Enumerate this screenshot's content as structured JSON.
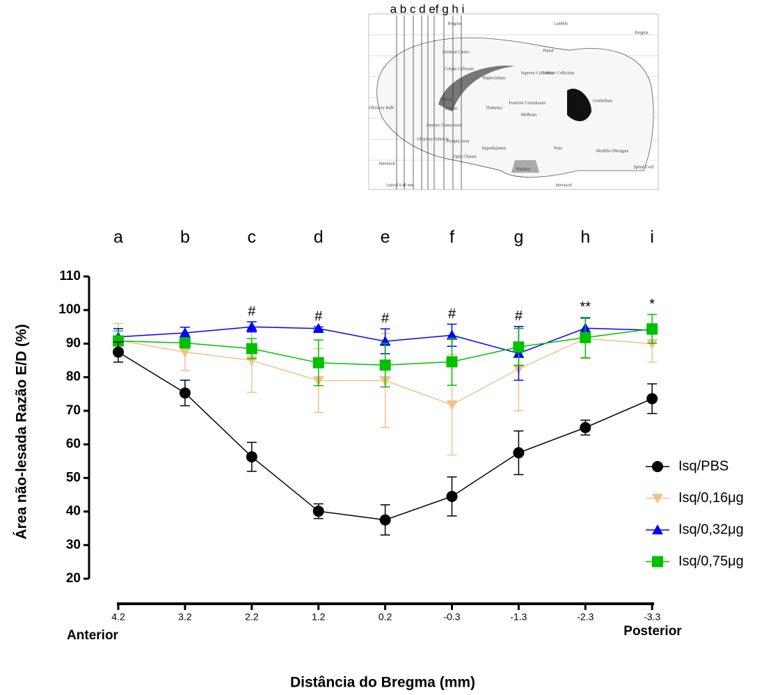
{
  "atlas": {
    "letters": "a b c d ef g h i",
    "labels": [
      "Bregma",
      "Lambda",
      "Bregma",
      "Cerebral Cortex",
      "Corpus Callosum",
      "Hippocampus",
      "Pineal",
      "Superior Colliculus",
      "Inferior Colliculus",
      "Cerebellum",
      "Olfactory Bulb",
      "Fornix",
      "Septum",
      "Thalamus",
      "Posterior Commissure",
      "Midbrain",
      "Anterior Commissure",
      "Olfactory Tubercle",
      "Preoptic Area",
      "Hypothalamus",
      "Optic Chiasm",
      "Pons",
      "Medulla Oblongata",
      "Spinal Cord",
      "Pituitary",
      "Interaural",
      "Interaural",
      "Lateral 0.40 mm"
    ]
  },
  "chart_data": {
    "type": "line",
    "top_labels": [
      "a",
      "b",
      "c",
      "d",
      "e",
      "f",
      "g",
      "h",
      "i"
    ],
    "categories": [
      "4.2",
      "3.2",
      "2.2",
      "1.2",
      "0.2",
      "-0.3",
      "-1.3",
      "-2.3",
      "-3.3"
    ],
    "annotations": [
      null,
      null,
      "#",
      "#",
      "#",
      "#",
      "#",
      "**",
      "*"
    ],
    "x_left_label": "Anterior",
    "x_right_label": "Posterior",
    "xlabel": "Distância do Bregma (mm)",
    "ylabel": "Área não-lesada Razão E/D (%)",
    "ylim": [
      20,
      110
    ],
    "yticks": [
      20,
      30,
      40,
      50,
      60,
      70,
      80,
      90,
      100,
      110
    ],
    "series": [
      {
        "name": "Isq/PBS",
        "color": "#000000",
        "marker": "circle",
        "values": [
          87.5,
          75.3,
          56.3,
          40.1,
          37.5,
          44.5,
          57.5,
          65,
          73.6
        ],
        "errors": [
          3,
          3.8,
          4.3,
          2.2,
          4.5,
          5.8,
          6.5,
          2.2,
          4.4
        ]
      },
      {
        "name": "Isq/0,16μg",
        "color": "#f5c08a",
        "marker": "triangle-down",
        "values": [
          91,
          87.5,
          85,
          79,
          79,
          71.8,
          82.5,
          91.5,
          90
        ],
        "errors": [
          5,
          5.5,
          9.5,
          9.5,
          14,
          15,
          12.5,
          6,
          5.5
        ]
      },
      {
        "name": "Isq/0,32μg",
        "color": "#0000ff",
        "marker": "triangle-up",
        "values": [
          92,
          93.2,
          95,
          94.5,
          90.7,
          92.5,
          87.1,
          94.6,
          94
        ],
        "errors": [
          2.5,
          1.7,
          1.5,
          0.5,
          3.7,
          3.3,
          8,
          3,
          1
        ]
      },
      {
        "name": "Isq/0,75μg",
        "color": "#00c000",
        "marker": "square",
        "values": [
          90.8,
          90.2,
          88.5,
          84.3,
          83.6,
          84.6,
          89,
          91.8,
          94.4
        ],
        "errors": [
          3,
          1.5,
          3,
          6.8,
          6.5,
          7,
          5.5,
          6,
          4.3
        ]
      }
    ]
  }
}
